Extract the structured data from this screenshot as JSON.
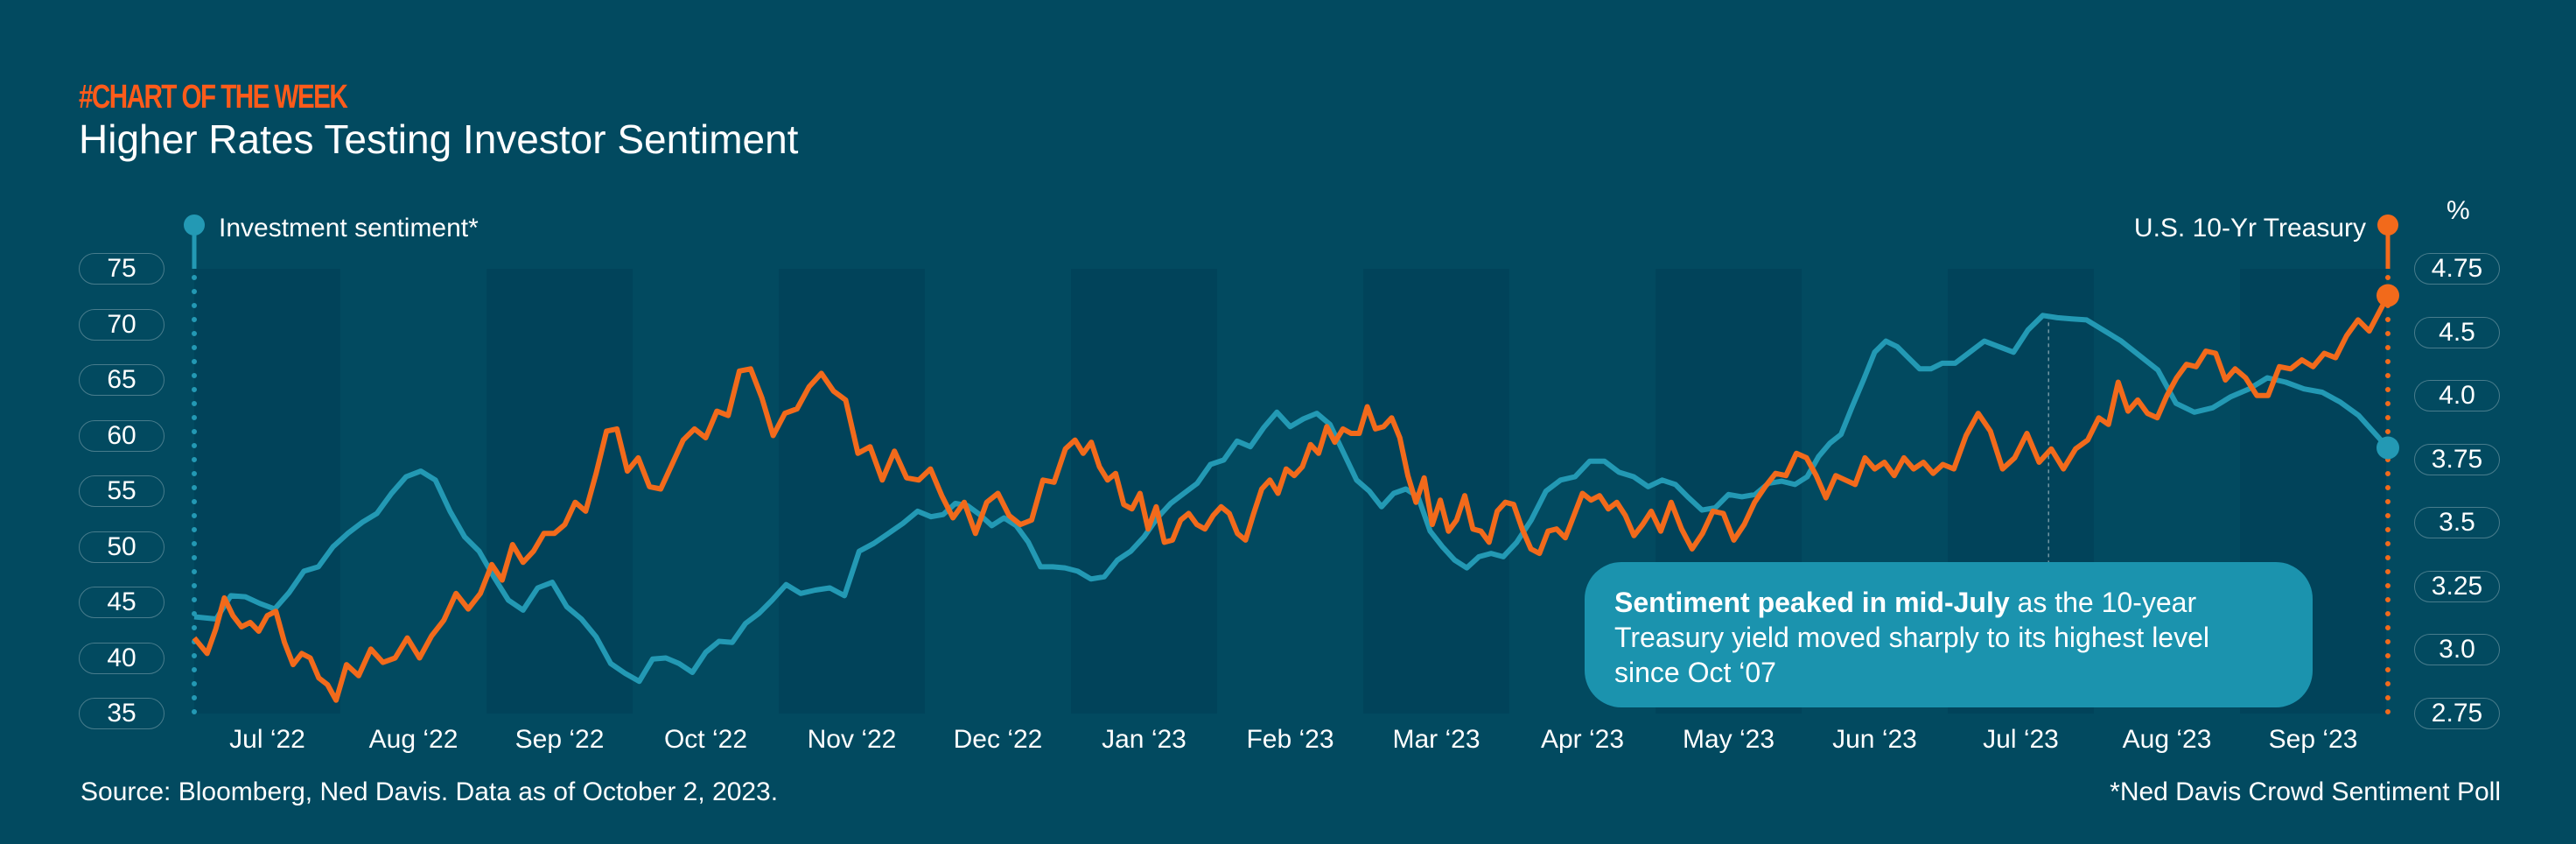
{
  "header": {
    "kicker": "#CHART OF THE WEEK",
    "title": "Higher Rates Testing Investor Sentiment"
  },
  "annotation": {
    "bold": "Sentiment peaked in mid-July",
    "text": " as the 10-year Treasury yield moved sharply to its highest level since Oct ‘07"
  },
  "footer": {
    "source": "Source: Bloomberg, Ned Davis. Data as of October 2, 2023.",
    "footnote": "*Ned Davis Crowd Sentiment Poll"
  },
  "colors": {
    "background": "#024a60",
    "band": "#01435a",
    "sentiment": "#2399b4",
    "treasury": "#f26a1b",
    "kicker": "#ff5b1a",
    "note": "#1b93ae"
  },
  "chart_data": {
    "type": "line",
    "title": "Higher Rates Testing Investor Sentiment",
    "categories": [
      "Jul ‘22",
      "Aug ‘22",
      "Sep ‘22",
      "Oct ‘22",
      "Nov ‘22",
      "Dec ‘22",
      "Jan ‘23",
      "Feb ‘23",
      "Mar ‘23",
      "Apr ‘23",
      "May ‘23",
      "Jun ‘23",
      "Jul ‘23",
      "Aug ‘23",
      "Sep ‘23"
    ],
    "shaded_months": [
      0,
      2,
      4,
      6,
      8,
      10,
      12,
      14
    ],
    "left_axis": {
      "label": "Investment sentiment*",
      "ticks": [
        "75",
        "70",
        "65",
        "60",
        "55",
        "50",
        "45",
        "40",
        "35"
      ],
      "range": [
        35,
        75
      ]
    },
    "right_axis": {
      "unit": "%",
      "label": "U.S. 10-Yr Treasury",
      "ticks": [
        "4.75",
        "4.5",
        "4.0",
        "3.75",
        "3.5",
        "3.25",
        "3.0",
        "2.75"
      ],
      "range": [
        2.75,
        4.75
      ]
    },
    "peak_marker_month": 12.69,
    "series": [
      {
        "name": "Investment sentiment*",
        "axis": "left",
        "color": "#2399b4",
        "monthly": [
          [
            43.7,
            43.5,
            45.6,
            45.5,
            44.9,
            44.4,
            45.9,
            47.8,
            48.2,
            50
          ],
          [
            51.2,
            52.2,
            53,
            54.8,
            56.3,
            56.8,
            56,
            53.2,
            50.9,
            49.6
          ],
          [
            47.3,
            45.2,
            44.3,
            46.3,
            46.8,
            44.6,
            43.5,
            41.9,
            39.5,
            38.6
          ],
          [
            37.9,
            39.9,
            40,
            39.5,
            38.7,
            40.5,
            41.5,
            41.4,
            43.1,
            44,
            45.2
          ],
          [
            46.6,
            45.8,
            46.1,
            46.3,
            45.6,
            49.6,
            50.3,
            51.2,
            52.1,
            53.2
          ],
          [
            52.7,
            52.9,
            53.9,
            53.7,
            52.9,
            51.9,
            52.6,
            51.9,
            50.4,
            48.2,
            48.2,
            48.1
          ],
          [
            47.8,
            47.1,
            47.3,
            48.8,
            49.6,
            50.9,
            52.6,
            53.9,
            54.8,
            55.7,
            57.4
          ],
          [
            57.8,
            59.5,
            59,
            60.7,
            62.1,
            60.8,
            61.5,
            62,
            61,
            58.5,
            56
          ],
          [
            55,
            53.6,
            54.8,
            55.2,
            54.5,
            51.4,
            50,
            48.8,
            48.1,
            49.1,
            49.4,
            49.1
          ],
          [
            50.4,
            52.4,
            55,
            56,
            56.3,
            57.7,
            57.7,
            56.7,
            56.3,
            55.4
          ],
          [
            56,
            55.6,
            54.4,
            53.3,
            53.5,
            54.7,
            54.5,
            54.7,
            55.7,
            55.9,
            55.6
          ],
          [
            56.3,
            58.1,
            59.3,
            60.1,
            62.6,
            65,
            67.5,
            68.5,
            68,
            67,
            66,
            66,
            66.5
          ],
          [
            66.5,
            67.5,
            68.5,
            68,
            67.5,
            69.5,
            70.8,
            70.6,
            70.5,
            70.4
          ],
          [
            69.5,
            68.5,
            67.2,
            65.9,
            62.9,
            62.1,
            62.5,
            63.5
          ],
          [
            64.2,
            65.2,
            64.8,
            64.2,
            63.9,
            63,
            61.8,
            58.9
          ]
        ]
      },
      {
        "name": "U.S. 10-Yr Treasury",
        "axis": "right",
        "color": "#f26a1b",
        "monthly": [
          [
            3.09,
            3.02,
            3.13,
            3.27,
            3.19,
            3.14,
            3.16,
            3.12,
            3.19,
            3.21,
            3.07,
            2.97,
            3.02,
            3.0,
            2.91,
            2.88,
            2.81
          ],
          [
            2.97,
            2.92,
            3.04,
            2.98,
            3.0,
            3.09,
            3.0,
            3.1,
            3.17,
            3.29,
            3.22,
            3.29
          ],
          [
            3.42,
            3.35,
            3.51,
            3.43,
            3.48,
            3.56,
            3.56,
            3.6,
            3.7,
            3.66,
            3.83,
            4.02,
            4.03,
            3.84
          ],
          [
            3.9,
            3.77,
            3.76,
            3.87,
            3.98,
            4.03,
            3.99,
            4.11,
            4.09,
            4.29,
            4.3,
            4.17,
            4.0
          ],
          [
            4.1,
            4.12,
            4.22,
            4.28,
            4.2,
            4.16,
            3.92,
            3.95,
            3.8,
            3.93,
            3.81,
            3.8
          ],
          [
            3.85,
            3.73,
            3.63,
            3.7,
            3.56,
            3.7,
            3.74,
            3.64,
            3.6,
            3.62,
            3.8,
            3.79,
            3.94
          ],
          [
            3.98,
            3.92,
            3.97,
            3.86,
            3.8,
            3.83,
            3.69,
            3.67,
            3.74,
            3.58,
            3.68,
            3.52,
            3.53,
            3.62,
            3.65,
            3.6,
            3.58,
            3.64
          ],
          [
            3.68,
            3.65,
            3.56,
            3.53,
            3.65,
            3.76,
            3.8,
            3.74,
            3.85,
            3.82,
            3.86,
            3.96,
            3.92,
            4.04,
            3.97,
            4.03,
            4.01,
            4.01
          ],
          [
            4.13,
            4.03,
            4.04,
            4.08,
            3.99,
            3.82,
            3.7,
            3.81,
            3.6,
            3.71,
            3.57,
            3.62,
            3.73,
            3.58,
            3.57,
            3.52,
            3.66,
            3.7
          ],
          [
            3.69,
            3.58,
            3.49,
            3.47,
            3.57,
            3.58,
            3.54,
            3.64,
            3.74,
            3.71,
            3.73,
            3.67,
            3.7,
            3.64,
            3.55,
            3.6,
            3.66
          ],
          [
            3.57,
            3.7,
            3.58,
            3.49,
            3.56,
            3.66,
            3.65,
            3.53,
            3.6,
            3.7,
            3.77,
            3.83,
            3.82,
            3.92
          ],
          [
            3.9,
            3.82,
            3.72,
            3.82,
            3.8,
            3.78,
            3.9,
            3.85,
            3.88,
            3.82,
            3.9,
            3.85,
            3.88,
            3.83,
            3.87
          ],
          [
            3.85,
            4.0,
            4.1,
            4.02,
            3.85,
            3.9,
            4.01,
            3.88,
            3.94,
            3.85,
            3.94,
            3.98
          ],
          [
            4.08,
            4.05,
            4.24,
            4.11,
            4.16,
            4.1,
            4.08,
            4.18,
            4.26,
            4.32,
            4.31,
            4.38,
            4.37,
            4.25,
            4.3
          ],
          [
            4.26,
            4.18,
            4.18,
            4.31,
            4.3,
            4.34,
            4.31,
            4.37,
            4.35,
            4.45,
            4.52,
            4.47,
            4.63
          ]
        ]
      }
    ]
  }
}
